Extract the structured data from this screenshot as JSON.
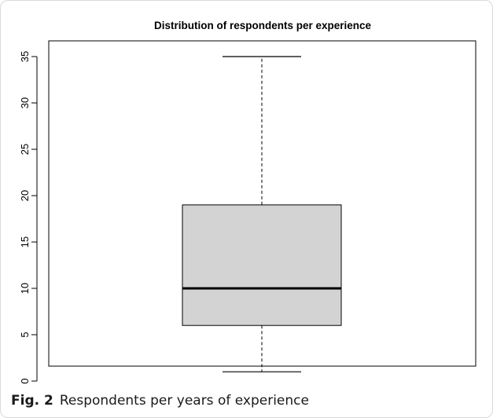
{
  "chart_data": {
    "type": "boxplot",
    "title": "Distribution of respondents per experience",
    "xlabel": "",
    "ylabel": "",
    "ylim": [
      0,
      35
    ],
    "yticks": [
      0,
      5,
      10,
      15,
      20,
      25,
      30,
      35
    ],
    "grid": false,
    "box": {
      "min": 1,
      "q1": 6,
      "median": 10,
      "q3": 19,
      "max": 35
    },
    "box_fill": "#d3d3d3"
  },
  "caption": {
    "label": "Fig. 2",
    "text": "Respondents per years of experience"
  }
}
